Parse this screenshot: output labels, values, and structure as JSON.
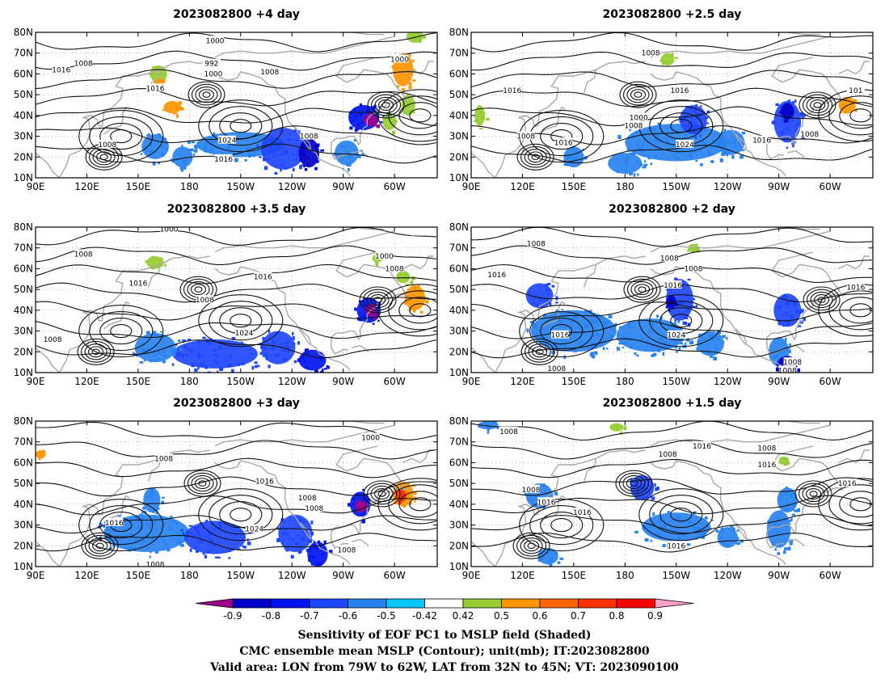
{
  "panels": [
    {
      "title": "2023082800  +4 day",
      "contour_labels": [
        {
          "text": "1000",
          "lon": -165,
          "lat": 76
        },
        {
          "text": "992",
          "lon": -167,
          "lat": 65
        },
        {
          "text": "1000",
          "lon": -166,
          "lat": 60
        },
        {
          "text": "1008",
          "lon": -133,
          "lat": 61
        },
        {
          "text": "1000",
          "lon": -57,
          "lat": 67
        },
        {
          "text": "1008",
          "lon": 118,
          "lat": 65
        },
        {
          "text": "1016",
          "lon": 105,
          "lat": 62
        },
        {
          "text": "1016",
          "lon": 160,
          "lat": 53
        },
        {
          "text": "1024",
          "lon": -158,
          "lat": 28
        },
        {
          "text": "1008",
          "lon": -110,
          "lat": 30
        },
        {
          "text": "1008",
          "lon": 132,
          "lat": 26
        },
        {
          "text": "1016",
          "lon": -160,
          "lat": 19
        }
      ],
      "shading": [
        {
          "lon": -150,
          "lat": 26,
          "rx": 26,
          "ry": 6,
          "v": -0.5
        },
        {
          "lon": -125,
          "lat": 24,
          "rx": 13,
          "ry": 10,
          "v": -0.6
        },
        {
          "lon": -110,
          "lat": 22,
          "rx": 6,
          "ry": 7,
          "v": -0.8
        },
        {
          "lon": -88,
          "lat": 22,
          "rx": 7,
          "ry": 6,
          "v": -0.5
        },
        {
          "lon": -78,
          "lat": 39,
          "rx": 9,
          "ry": 6,
          "v": -0.7
        },
        {
          "lon": -74,
          "lat": 38,
          "rx": 4,
          "ry": 3,
          "v": -0.9
        },
        {
          "lon": 160,
          "lat": 25,
          "rx": 8,
          "ry": 6,
          "v": -0.5
        },
        {
          "lon": 176,
          "lat": 20,
          "rx": 6,
          "ry": 5,
          "v": -0.5
        },
        {
          "lon": 162,
          "lat": 60,
          "rx": 5,
          "ry": 4,
          "v": 0.5
        },
        {
          "lon": 162,
          "lat": 55,
          "rx": 3,
          "ry": 3,
          "v": 0.6
        },
        {
          "lon": 170,
          "lat": 44,
          "rx": 5,
          "ry": 3,
          "v": 0.6
        },
        {
          "lon": -55,
          "lat": 62,
          "rx": 6,
          "ry": 8,
          "v": 0.6
        },
        {
          "lon": -52,
          "lat": 45,
          "rx": 4,
          "ry": 5,
          "v": 0.5
        },
        {
          "lon": -63,
          "lat": 37,
          "rx": 4,
          "ry": 4,
          "v": 0.5
        },
        {
          "lon": -48,
          "lat": 78,
          "rx": 5,
          "ry": 3,
          "v": 0.5
        }
      ]
    },
    {
      "title": "2023082800  +2.5 day",
      "contour_labels": [
        {
          "text": "1008",
          "lon": -165,
          "lat": 70
        },
        {
          "text": "1016",
          "lon": 114,
          "lat": 52
        },
        {
          "text": "1000",
          "lon": -172,
          "lat": 39
        },
        {
          "text": "1008",
          "lon": -175,
          "lat": 35
        },
        {
          "text": "1016",
          "lon": -148,
          "lat": 52
        },
        {
          "text": "1008",
          "lon": 122,
          "lat": 30
        },
        {
          "text": "1016",
          "lon": 144,
          "lat": 27
        },
        {
          "text": "1024",
          "lon": -145,
          "lat": 26
        },
        {
          "text": "1016",
          "lon": -100,
          "lat": 28
        },
        {
          "text": "1008",
          "lon": -72,
          "lat": 31
        },
        {
          "text": "101",
          "lon": -45,
          "lat": 52
        }
      ],
      "shading": [
        {
          "lon": -150,
          "lat": 27,
          "rx": 30,
          "ry": 9,
          "v": -0.5
        },
        {
          "lon": -140,
          "lat": 38,
          "rx": 8,
          "ry": 7,
          "v": -0.6
        },
        {
          "lon": -118,
          "lat": 27,
          "rx": 8,
          "ry": 6,
          "v": -0.5
        },
        {
          "lon": -85,
          "lat": 37,
          "rx": 8,
          "ry": 10,
          "v": -0.6
        },
        {
          "lon": -85,
          "lat": 42,
          "rx": 4,
          "ry": 4,
          "v": -0.8
        },
        {
          "lon": -180,
          "lat": 17,
          "rx": 10,
          "ry": 5,
          "v": -0.5
        },
        {
          "lon": 150,
          "lat": 20,
          "rx": 6,
          "ry": 5,
          "v": -0.5
        },
        {
          "lon": -50,
          "lat": 45,
          "rx": 5,
          "ry": 4,
          "v": 0.6
        },
        {
          "lon": -155,
          "lat": 67,
          "rx": 4,
          "ry": 3,
          "v": 0.5
        },
        {
          "lon": 95,
          "lat": 40,
          "rx": 3,
          "ry": 5,
          "v": 0.5
        }
      ]
    },
    {
      "title": "2023082800  +3.5 day",
      "contour_labels": [
        {
          "text": "1000",
          "lon": 168,
          "lat": 79
        },
        {
          "text": "1008",
          "lon": 118,
          "lat": 67
        },
        {
          "text": "1016",
          "lon": 150,
          "lat": 53
        },
        {
          "text": "1008",
          "lon": -171,
          "lat": 45
        },
        {
          "text": "1016",
          "lon": -137,
          "lat": 56
        },
        {
          "text": "1000",
          "lon": -66,
          "lat": 66
        },
        {
          "text": "1008",
          "lon": -60,
          "lat": 60
        },
        {
          "text": "1024",
          "lon": -148,
          "lat": 29
        },
        {
          "text": "1008",
          "lon": 100,
          "lat": 26
        }
      ],
      "shading": [
        {
          "lon": -165,
          "lat": 19,
          "rx": 25,
          "ry": 7,
          "v": -0.6
        },
        {
          "lon": -128,
          "lat": 22,
          "rx": 10,
          "ry": 8,
          "v": -0.6
        },
        {
          "lon": -108,
          "lat": 16,
          "rx": 8,
          "ry": 5,
          "v": -0.7
        },
        {
          "lon": 160,
          "lat": 22,
          "rx": 12,
          "ry": 7,
          "v": -0.5
        },
        {
          "lon": -75,
          "lat": 40,
          "rx": 7,
          "ry": 6,
          "v": -0.7
        },
        {
          "lon": -74,
          "lat": 40,
          "rx": 3,
          "ry": 3,
          "v": -0.9
        },
        {
          "lon": -48,
          "lat": 46,
          "rx": 6,
          "ry": 6,
          "v": 0.6
        },
        {
          "lon": -55,
          "lat": 56,
          "rx": 4,
          "ry": 3,
          "v": 0.5
        },
        {
          "lon": 160,
          "lat": 63,
          "rx": 5,
          "ry": 3,
          "v": 0.5
        },
        {
          "lon": -70,
          "lat": 65,
          "rx": 3,
          "ry": 2,
          "v": 0.5
        }
      ]
    },
    {
      "title": "2023082800  +2 day",
      "contour_labels": [
        {
          "text": "1008",
          "lon": 128,
          "lat": 72
        },
        {
          "text": "1008",
          "lon": -154,
          "lat": 65
        },
        {
          "text": "1008",
          "lon": -140,
          "lat": 60
        },
        {
          "text": "1016",
          "lon": 105,
          "lat": 57
        },
        {
          "text": "1016",
          "lon": -152,
          "lat": 52
        },
        {
          "text": "1016",
          "lon": -45,
          "lat": 51
        },
        {
          "text": "1016",
          "lon": 142,
          "lat": 28
        },
        {
          "text": "1024",
          "lon": -150,
          "lat": 28
        },
        {
          "text": "1008",
          "lon": -82,
          "lat": 15
        },
        {
          "text": "1008",
          "lon": 140,
          "lat": 12
        },
        {
          "text": "1008",
          "lon": -85,
          "lat": 11
        }
      ],
      "shading": [
        {
          "lon": 150,
          "lat": 30,
          "rx": 25,
          "ry": 10,
          "v": -0.5
        },
        {
          "lon": -165,
          "lat": 28,
          "rx": 20,
          "ry": 8,
          "v": -0.5
        },
        {
          "lon": -148,
          "lat": 45,
          "rx": 8,
          "ry": 10,
          "v": -0.6
        },
        {
          "lon": -130,
          "lat": 24,
          "rx": 8,
          "ry": 6,
          "v": -0.5
        },
        {
          "lon": -90,
          "lat": 20,
          "rx": 6,
          "ry": 7,
          "v": -0.5
        },
        {
          "lon": -85,
          "lat": 40,
          "rx": 8,
          "ry": 8,
          "v": -0.6
        },
        {
          "lon": -85,
          "lat": 14,
          "rx": 6,
          "ry": 4,
          "v": -0.8
        },
        {
          "lon": 130,
          "lat": 47,
          "rx": 8,
          "ry": 6,
          "v": -0.6
        },
        {
          "lon": -153,
          "lat": 44,
          "rx": 3,
          "ry": 3,
          "v": -0.8
        },
        {
          "lon": -140,
          "lat": 70,
          "rx": 3,
          "ry": 2,
          "v": 0.5
        }
      ]
    },
    {
      "title": "2023082800  +3 day",
      "contour_labels": [
        {
          "text": "1008",
          "lon": 165,
          "lat": 62
        },
        {
          "text": "1000",
          "lon": -74,
          "lat": 72
        },
        {
          "text": "1016",
          "lon": -136,
          "lat": 51
        },
        {
          "text": "1008",
          "lon": -111,
          "lat": 43
        },
        {
          "text": "1008",
          "lon": -107,
          "lat": 38
        },
        {
          "text": "1016",
          "lon": 136,
          "lat": 31
        },
        {
          "text": "1024",
          "lon": -142,
          "lat": 28
        },
        {
          "text": "1008",
          "lon": -88,
          "lat": 18
        },
        {
          "text": "1008",
          "lon": 160,
          "lat": 11
        }
      ],
      "shading": [
        {
          "lon": 155,
          "lat": 26,
          "rx": 25,
          "ry": 9,
          "v": -0.5
        },
        {
          "lon": -165,
          "lat": 24,
          "rx": 18,
          "ry": 8,
          "v": -0.6
        },
        {
          "lon": 158,
          "lat": 42,
          "rx": 5,
          "ry": 6,
          "v": -0.5
        },
        {
          "lon": -118,
          "lat": 26,
          "rx": 10,
          "ry": 9,
          "v": -0.6
        },
        {
          "lon": -105,
          "lat": 16,
          "rx": 6,
          "ry": 6,
          "v": -0.7
        },
        {
          "lon": -80,
          "lat": 40,
          "rx": 6,
          "ry": 6,
          "v": -0.7
        },
        {
          "lon": -80,
          "lat": 39,
          "rx": 3,
          "ry": 3,
          "v": -0.9
        },
        {
          "lon": -55,
          "lat": 45,
          "rx": 6,
          "ry": 6,
          "v": 0.6
        },
        {
          "lon": -56,
          "lat": 44,
          "rx": 3,
          "ry": 3,
          "v": 0.8
        },
        {
          "lon": 93,
          "lat": 64,
          "rx": 3,
          "ry": 2,
          "v": 0.6
        }
      ]
    },
    {
      "title": "2023082800  +1.5 day",
      "contour_labels": [
        {
          "text": "1008",
          "lon": 112,
          "lat": 75
        },
        {
          "text": "1008",
          "lon": -155,
          "lat": 64
        },
        {
          "text": "1016",
          "lon": -135,
          "lat": 68
        },
        {
          "text": "1008",
          "lon": -97,
          "lat": 67
        },
        {
          "text": "1016",
          "lon": -97,
          "lat": 59
        },
        {
          "text": "1016",
          "lon": -50,
          "lat": 50
        },
        {
          "text": "1008",
          "lon": 125,
          "lat": 47
        },
        {
          "text": "1016",
          "lon": 134,
          "lat": 41
        },
        {
          "text": "1016",
          "lon": 155,
          "lat": 36
        },
        {
          "text": "1016",
          "lon": -150,
          "lat": 20
        }
      ],
      "shading": [
        {
          "lon": -170,
          "lat": 48,
          "rx": 7,
          "ry": 6,
          "v": -0.6
        },
        {
          "lon": -150,
          "lat": 29,
          "rx": 20,
          "ry": 7,
          "v": -0.5
        },
        {
          "lon": -90,
          "lat": 28,
          "rx": 7,
          "ry": 9,
          "v": -0.5
        },
        {
          "lon": -85,
          "lat": 42,
          "rx": 6,
          "ry": 6,
          "v": -0.5
        },
        {
          "lon": 130,
          "lat": 44,
          "rx": 8,
          "ry": 6,
          "v": -0.5
        },
        {
          "lon": 135,
          "lat": 15,
          "rx": 6,
          "ry": 4,
          "v": -0.5
        },
        {
          "lon": 100,
          "lat": 78,
          "rx": 6,
          "ry": 2,
          "v": -0.5
        },
        {
          "lon": 175,
          "lat": 77,
          "rx": 4,
          "ry": 2,
          "v": 0.5
        },
        {
          "lon": -87,
          "lat": 61,
          "rx": 3,
          "ry": 2,
          "v": 0.5
        },
        {
          "lon": -120,
          "lat": 24,
          "rx": 6,
          "ry": 5,
          "v": -0.5
        }
      ]
    }
  ],
  "axes": {
    "x_ticks": [
      "90E",
      "120E",
      "150E",
      "180",
      "150W",
      "120W",
      "90W",
      "60W"
    ],
    "x_tick_lons": [
      90,
      120,
      150,
      180,
      -150,
      -120,
      -90,
      -60
    ],
    "y_ticks": [
      "10N",
      "20N",
      "30N",
      "40N",
      "50N",
      "60N",
      "70N",
      "80N"
    ],
    "y_tick_lats": [
      10,
      20,
      30,
      40,
      50,
      60,
      70,
      80
    ],
    "lon_range": [
      90,
      -35
    ],
    "lat_range": [
      10,
      80
    ]
  },
  "colorbar": {
    "labels": [
      "-0.9",
      "-0.8",
      "-0.7",
      "-0.6",
      "-0.5",
      "-0.42",
      "0.42",
      "0.5",
      "0.6",
      "0.7",
      "0.8",
      "0.9"
    ],
    "colors": [
      "#a0008c",
      "#0000c8",
      "#0014f0",
      "#1e46ff",
      "#2882f0",
      "#00c8ff",
      "#ffffff",
      "#96cd32",
      "#ff9600",
      "#ff6400",
      "#ff3200",
      "#ff0000",
      "#ffa0c8"
    ]
  },
  "captions": [
    "Sensitivity of EOF PC1 to MSLP field (Shaded)",
    "CMC ensemble mean MSLP (Contour); unit(mb); IT:2023082800",
    "Valid area: LON from 79W to 62W, LAT from 32N to 45N; VT: 2023090100"
  ]
}
